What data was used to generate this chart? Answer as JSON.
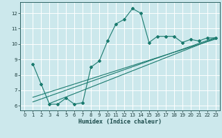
{
  "x_data": [
    1,
    2,
    3,
    4,
    5,
    6,
    7,
    8,
    9,
    10,
    11,
    12,
    13,
    14,
    15,
    16,
    17,
    18,
    19,
    20,
    21,
    22,
    23
  ],
  "y_data": [
    8.7,
    7.4,
    6.1,
    6.1,
    6.5,
    6.1,
    6.2,
    8.5,
    8.9,
    10.2,
    11.3,
    11.6,
    12.3,
    12.0,
    10.1,
    10.5,
    10.5,
    10.5,
    10.1,
    10.3,
    10.2,
    10.4,
    10.4
  ],
  "line_color": "#1a7a6e",
  "bg_color": "#cce8ec",
  "grid_color": "#ffffff",
  "xlabel": "Humidex (Indice chaleur)",
  "xlim": [
    -0.5,
    23.5
  ],
  "ylim": [
    5.7,
    12.7
  ],
  "yticks": [
    6,
    7,
    8,
    9,
    10,
    11,
    12
  ],
  "xticks": [
    0,
    1,
    2,
    3,
    4,
    5,
    6,
    7,
    8,
    9,
    10,
    11,
    12,
    13,
    14,
    15,
    16,
    17,
    18,
    19,
    20,
    21,
    22,
    23
  ],
  "trend_lines": [
    {
      "x0": 1,
      "y0": 6.55,
      "x1": 23,
      "y1": 10.32
    },
    {
      "x0": 1,
      "y0": 6.25,
      "x1": 23,
      "y1": 10.42
    },
    {
      "x0": 3,
      "y0": 6.15,
      "x1": 23,
      "y1": 10.38
    }
  ]
}
